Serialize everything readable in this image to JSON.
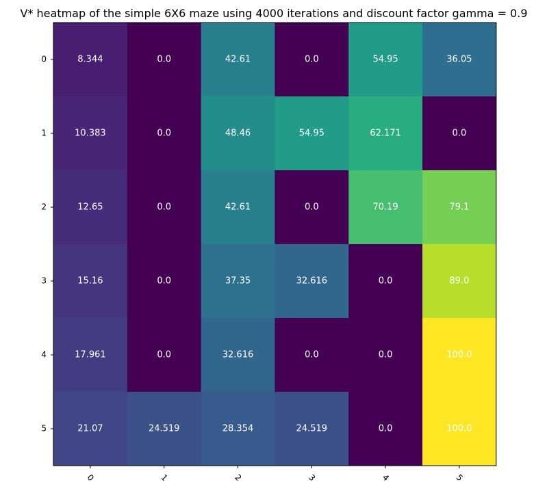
{
  "chart_data": {
    "type": "heatmap",
    "title": "V* heatmap of the simple 6X6 maze using 4000 iterations and discount factor gamma = 0.9",
    "xlabel": "",
    "ylabel": "",
    "x_ticks": [
      "0",
      "1",
      "2",
      "3",
      "4",
      "5"
    ],
    "y_ticks": [
      "0",
      "1",
      "2",
      "3",
      "4",
      "5"
    ],
    "value_range": [
      0,
      100
    ],
    "colormap": "viridis",
    "colorbar": false,
    "grid": false,
    "values": [
      [
        8.344,
        0.0,
        42.61,
        0.0,
        54.95,
        36.05
      ],
      [
        10.383,
        0.0,
        48.46,
        54.95,
        62.171,
        0.0
      ],
      [
        12.65,
        0.0,
        42.61,
        0.0,
        70.19,
        79.1
      ],
      [
        15.16,
        0.0,
        37.35,
        32.616,
        0.0,
        89.0
      ],
      [
        17.961,
        0.0,
        32.616,
        0.0,
        0.0,
        100.0
      ],
      [
        21.07,
        24.519,
        28.354,
        24.519,
        0.0,
        100.0
      ]
    ],
    "labels": [
      [
        "8.344",
        "0.0",
        "42.61",
        "0.0",
        "54.95",
        "36.05"
      ],
      [
        "10.383",
        "0.0",
        "48.46",
        "54.95",
        "62.171",
        "0.0"
      ],
      [
        "12.65",
        "0.0",
        "42.61",
        "0.0",
        "70.19",
        "79.1"
      ],
      [
        "15.16",
        "0.0",
        "37.35",
        "32.616",
        "0.0",
        "89.0"
      ],
      [
        "17.961",
        "0.0",
        "32.616",
        "0.0",
        "0.0",
        "100.0"
      ],
      [
        "21.07",
        "24.519",
        "28.354",
        "24.519",
        "0.0",
        "100.0"
      ]
    ]
  }
}
